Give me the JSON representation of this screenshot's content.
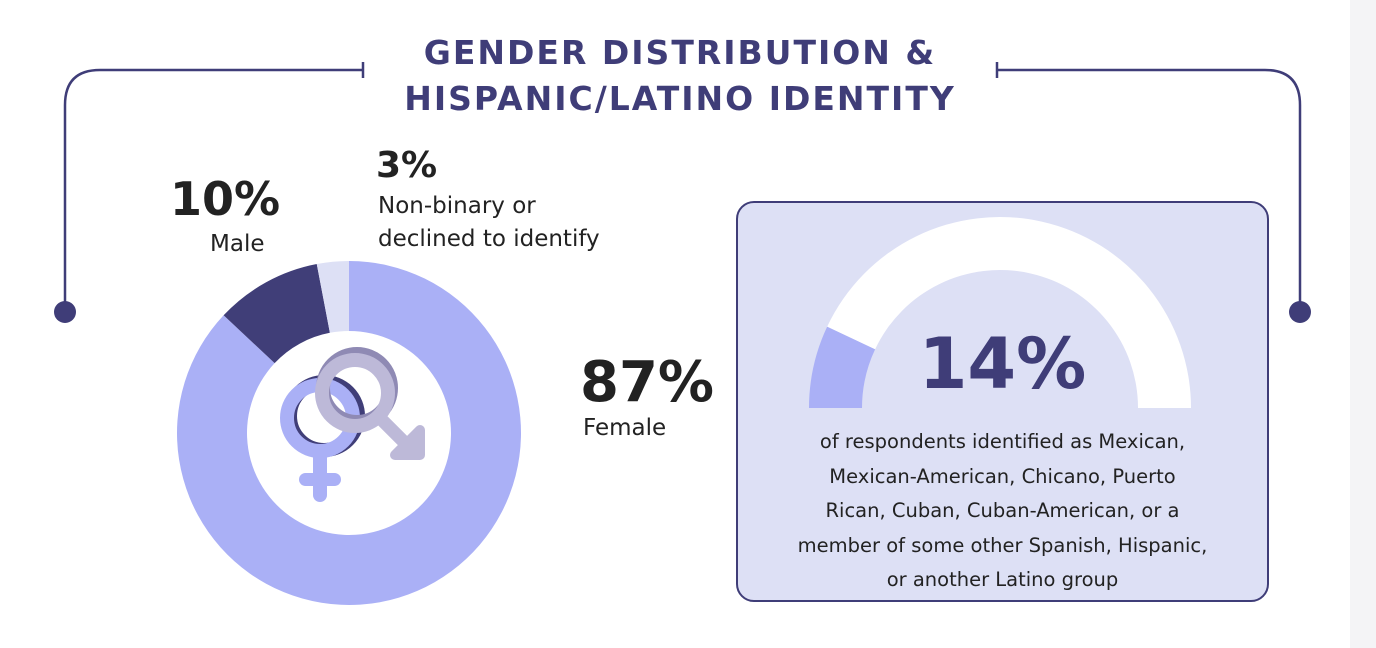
{
  "title_line1": "GENDER DISTRIBUTION &",
  "title_line2": "HISPANIC/LATINO IDENTITY",
  "colors": {
    "female": "#aab0f6",
    "male": "#403e78",
    "nonbinary": "#dde0f5",
    "accent": "#3f3d78",
    "gauge_track": "#ffffff"
  },
  "chart_data": [
    {
      "type": "pie",
      "title": "Gender Distribution",
      "categories": [
        "Female",
        "Male",
        "Non-binary or declined to identify"
      ],
      "values": [
        87,
        10,
        3
      ],
      "labels": [
        {
          "value": "87%",
          "text": "Female"
        },
        {
          "value": "10%",
          "text": "Male"
        },
        {
          "value": "3%",
          "text_line1": "Non-binary or",
          "text_line2": "declined to identify"
        }
      ]
    },
    {
      "type": "gauge",
      "title": "Hispanic/Latino Identity",
      "value": 14,
      "max": 100,
      "value_label": "14%",
      "description_lines": [
        "of respondents identified as Mexican,",
        "Mexican-American, Chicano, Puerto",
        "Rican, Cuban, Cuban-American, or a",
        "member of some other Spanish, Hispanic,",
        "or another Latino group"
      ]
    }
  ]
}
